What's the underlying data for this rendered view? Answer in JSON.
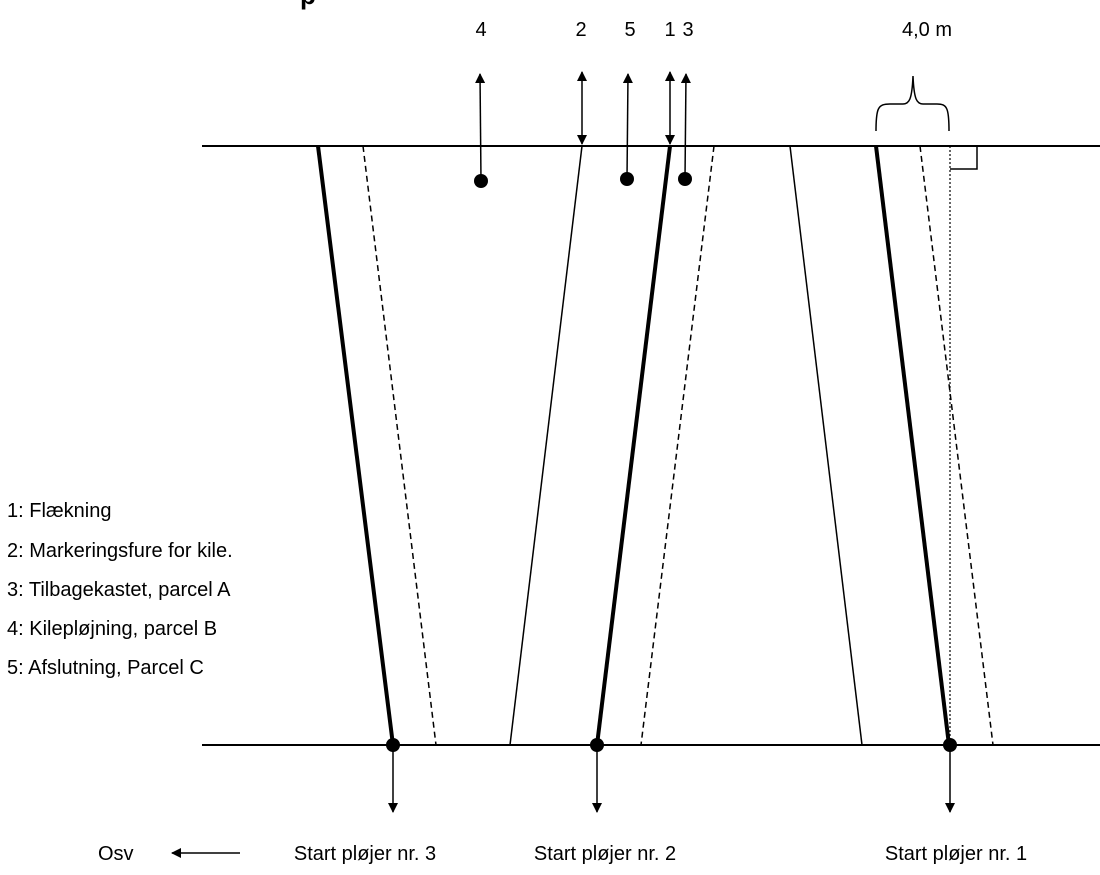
{
  "top_labels": {
    "n4": "4",
    "n2": "2",
    "n5": "5",
    "n1": "1",
    "n3": "3",
    "width": "4,0 m"
  },
  "legend": [
    "1: Flækning",
    "2: Markeringsfure for kile.",
    "3: Tilbagekastet, parcel A",
    "4: Kilepløjning, parcel B",
    "5: Afslutning, Parcel C"
  ],
  "bottom_labels": {
    "osv": "Osv",
    "start3": "Start pløjer nr. 3",
    "start2": "Start pløjer nr. 2",
    "start1": "Start pløjer nr. 1"
  },
  "colors": {
    "ink": "#000000",
    "background": "#ffffff"
  }
}
